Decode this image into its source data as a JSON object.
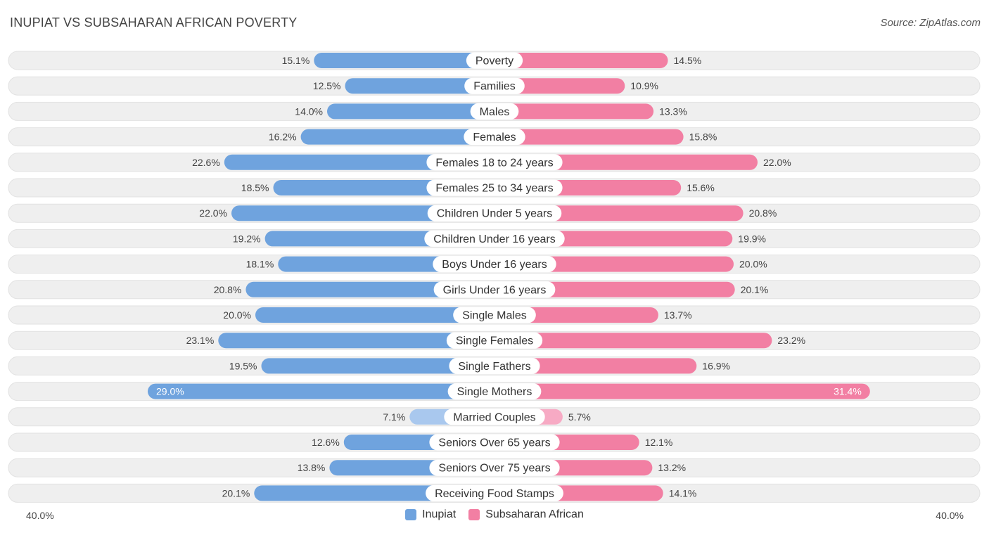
{
  "title": "INUPIAT VS SUBSAHARAN AFRICAN POVERTY",
  "source": "Source: ZipAtlas.com",
  "colors": {
    "left": "#6fa3de",
    "left_light": "#a9c8ee",
    "right": "#f27fa3",
    "right_light": "#f7aac4",
    "row_bg": "#efefef"
  },
  "chart_data": {
    "type": "bar",
    "orientation": "horizontal-diverging",
    "title": "INUPIAT VS SUBSAHARAN AFRICAN POVERTY",
    "axis_max": 40.0,
    "axis_min_label": "40.0%",
    "axis_max_label": "40.0%",
    "unit": "%",
    "categories": [
      "Poverty",
      "Families",
      "Males",
      "Females",
      "Females 18 to 24 years",
      "Females 25 to 34 years",
      "Children Under 5 years",
      "Children Under 16 years",
      "Boys Under 16 years",
      "Girls Under 16 years",
      "Single Males",
      "Single Females",
      "Single Fathers",
      "Single Mothers",
      "Married Couples",
      "Seniors Over 65 years",
      "Seniors Over 75 years",
      "Receiving Food Stamps"
    ],
    "series": [
      {
        "name": "Inupiat",
        "values": [
          15.1,
          12.5,
          14.0,
          16.2,
          22.6,
          18.5,
          22.0,
          19.2,
          18.1,
          20.8,
          20.0,
          23.1,
          19.5,
          29.0,
          7.1,
          12.6,
          13.8,
          20.1
        ]
      },
      {
        "name": "Subsaharan African",
        "values": [
          14.5,
          10.9,
          13.3,
          15.8,
          22.0,
          15.6,
          20.8,
          19.9,
          20.0,
          20.1,
          13.7,
          23.2,
          16.9,
          31.4,
          5.7,
          12.1,
          13.2,
          14.1
        ]
      }
    ],
    "legend": [
      "Inupiat",
      "Subsaharan African"
    ],
    "legend_position": "bottom-center"
  }
}
